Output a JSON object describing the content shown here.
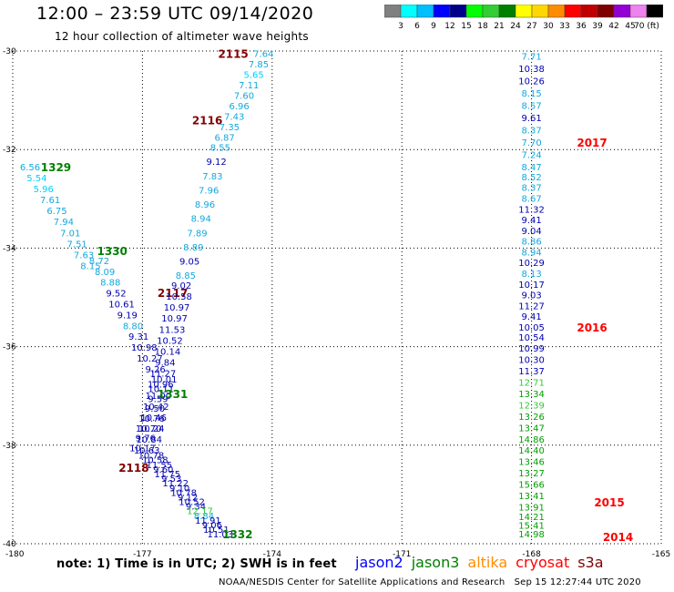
{
  "title": "12:00 – 23:59 UTC 09/14/2020",
  "subtitle": "12 hour collection of altimeter wave heights",
  "note": "note: 1) Time is in UTC; 2) SWH is in feet",
  "credit": "NOAA/NESDIS Center for Satellite Applications and Research",
  "timestamp": "Sep 15 12:27:44 UTC 2020",
  "legend": [
    {
      "label": "jason2",
      "color": "#0000ff"
    },
    {
      "label": "jason3",
      "color": "#008000"
    },
    {
      "label": "altika",
      "color": "#ff8c00"
    },
    {
      "label": "cryosat",
      "color": "#ff0000"
    },
    {
      "label": "s3a",
      "color": "#800000"
    }
  ],
  "color_scale": {
    "labels": [
      "3",
      "6",
      "9",
      "12",
      "15",
      "18",
      "21",
      "24",
      "27",
      "30",
      "33",
      "36",
      "39",
      "42",
      "45",
      "70 (ft)"
    ],
    "colors": [
      "#808080",
      "#00ffff",
      "#00bfff",
      "#0000ff",
      "#00008b",
      "#00ff00",
      "#32cd32",
      "#008000",
      "#ffff00",
      "#ffd700",
      "#ff8c00",
      "#ff0000",
      "#c00000",
      "#800000",
      "#9400d3",
      "#ee82ee",
      "#000000"
    ]
  },
  "chart_data": {
    "type": "scatter",
    "xlim": [
      -180,
      -165
    ],
    "ylim": [
      -40,
      -30
    ],
    "x_ticks": [
      "-180",
      "-177",
      "-174",
      "-171",
      "-168",
      "-165"
    ],
    "y_ticks": [
      "-30",
      "-32",
      "-34",
      "-36",
      "-38",
      "-40"
    ],
    "grid": true,
    "tracks": [
      {
        "label": "2115",
        "color": "#800000",
        "label_at": [
          -174.9,
          -30.05
        ],
        "start": [
          -174.2,
          -30.05
        ],
        "end": [
          -175.1,
          -31.75
        ],
        "values": [
          "7.64",
          "7.85",
          "5.65",
          "7.11",
          "7.60",
          "6.96",
          "7.43",
          "7.35",
          "6.87"
        ]
      },
      {
        "label": "2116",
        "color": "#800000",
        "label_at": [
          -175.5,
          -31.4
        ],
        "start": null,
        "end": null,
        "values": []
      },
      {
        "label": "2117",
        "color": "#800000",
        "label_at": [
          -176.3,
          -34.9
        ],
        "start": [
          -175.2,
          -31.95
        ],
        "end": [
          -176.0,
          -34.55
        ],
        "values": [
          "8.55",
          "9.12",
          "7.83",
          "7.96",
          "8.96",
          "8.94",
          "7.89",
          "8.89",
          "9.05",
          "8.85"
        ]
      },
      {
        "label": "2118",
        "color": "#800000",
        "label_at": [
          -177.2,
          -38.45
        ],
        "start": [
          -176.1,
          -34.75
        ],
        "end": [
          -176.9,
          -38.1
        ],
        "values": [
          "9.02",
          "10.58",
          "10.97",
          "10.97",
          "11.53",
          "10.52",
          "10.14",
          "9.84",
          "11.27",
          "10.96",
          "11.00",
          "10.42",
          "10.46",
          "10.24",
          "10.84",
          "10.63"
        ]
      },
      {
        "label": "1329",
        "color": "#008000",
        "label_at": [
          -179.0,
          -32.35
        ],
        "start": [
          -179.6,
          -32.35
        ],
        "end": [
          -178.2,
          -34.35
        ],
        "values": [
          "6.56",
          "5.54",
          "5.96",
          "7.61",
          "6.75",
          "7.94",
          "7.01",
          "7.51",
          "7.63",
          "8.15"
        ]
      },
      {
        "label": "1330",
        "color": "#008000",
        "label_at": [
          -177.7,
          -34.05
        ],
        "start": [
          -178.0,
          -34.25
        ],
        "end": [
          -176.7,
          -36.45
        ],
        "values": [
          "8.72",
          "8.09",
          "8.88",
          "9.52",
          "10.61",
          "9.19",
          "8.80",
          "9.31",
          "10.98",
          "10.27",
          "9.26"
        ]
      },
      {
        "label": "1331",
        "color": "#008000",
        "label_at": [
          -176.3,
          -36.95
        ],
        "start": [
          -176.5,
          -36.65
        ],
        "end": [
          -177.0,
          -38.05
        ],
        "values": [
          "10.01",
          "10.11",
          "9.59",
          "9.50",
          "10.76",
          "10.70",
          "9.76",
          "10.17"
        ]
      },
      {
        "label": "1332",
        "color": "#008000",
        "label_at": [
          -174.8,
          -39.8
        ],
        "start": [
          -176.8,
          -38.2
        ],
        "end": [
          -175.2,
          -39.8
        ],
        "values": [
          "10.78",
          "10.58",
          "11.55",
          "9.60",
          "11.75",
          "9.53",
          "11.22",
          "9.10",
          "10.78",
          "9.12",
          "10.52",
          "9.34",
          "12.17",
          "8.84",
          "11.91",
          "9.06",
          "10.51",
          "11.03"
        ]
      },
      {
        "label": "2017",
        "color": "#ff0000",
        "label_at": [
          -166.6,
          -31.85
        ],
        "start": [
          -168.0,
          -30.1
        ],
        "end": [
          -168.0,
          -32.35
        ],
        "values": [
          "7.71",
          "10.38",
          "10.26",
          "8.15",
          "8.57",
          "9.61",
          "8.37",
          "7.70",
          "7.24",
          "8.47"
        ]
      },
      {
        "label": "2016",
        "color": "#ff0000",
        "label_at": [
          -166.6,
          -35.6
        ],
        "start": [
          -168.0,
          -32.55
        ],
        "end": [
          -168.0,
          -35.6
        ],
        "values": [
          "8.52",
          "8.37",
          "8.67",
          "11.32",
          "9.41",
          "9.04",
          "8.86",
          "8.94",
          "10.29",
          "8.13",
          "10.17",
          "9.03",
          "11.27",
          "9.41",
          "10.05"
        ]
      },
      {
        "label": "2015",
        "color": "#ff0000",
        "label_at": [
          -166.2,
          -39.15
        ],
        "start": [
          -168.0,
          -35.8
        ],
        "end": [
          -168.0,
          -39.25
        ],
        "values": [
          "10.54",
          "10.99",
          "10.30",
          "11.37",
          "12.71",
          "13.34",
          "12.39",
          "13.26",
          "13.47",
          "14.86",
          "14.40",
          "13.46",
          "13.27",
          "15.66",
          "13.41",
          "13.91"
        ]
      },
      {
        "label": "2014",
        "color": "#ff0000",
        "label_at": [
          -166.0,
          -39.85
        ],
        "start": [
          -168.0,
          -39.45
        ],
        "end": [
          -168.0,
          -39.8
        ],
        "values": [
          "14.21",
          "15.41",
          "14.98"
        ]
      }
    ]
  }
}
